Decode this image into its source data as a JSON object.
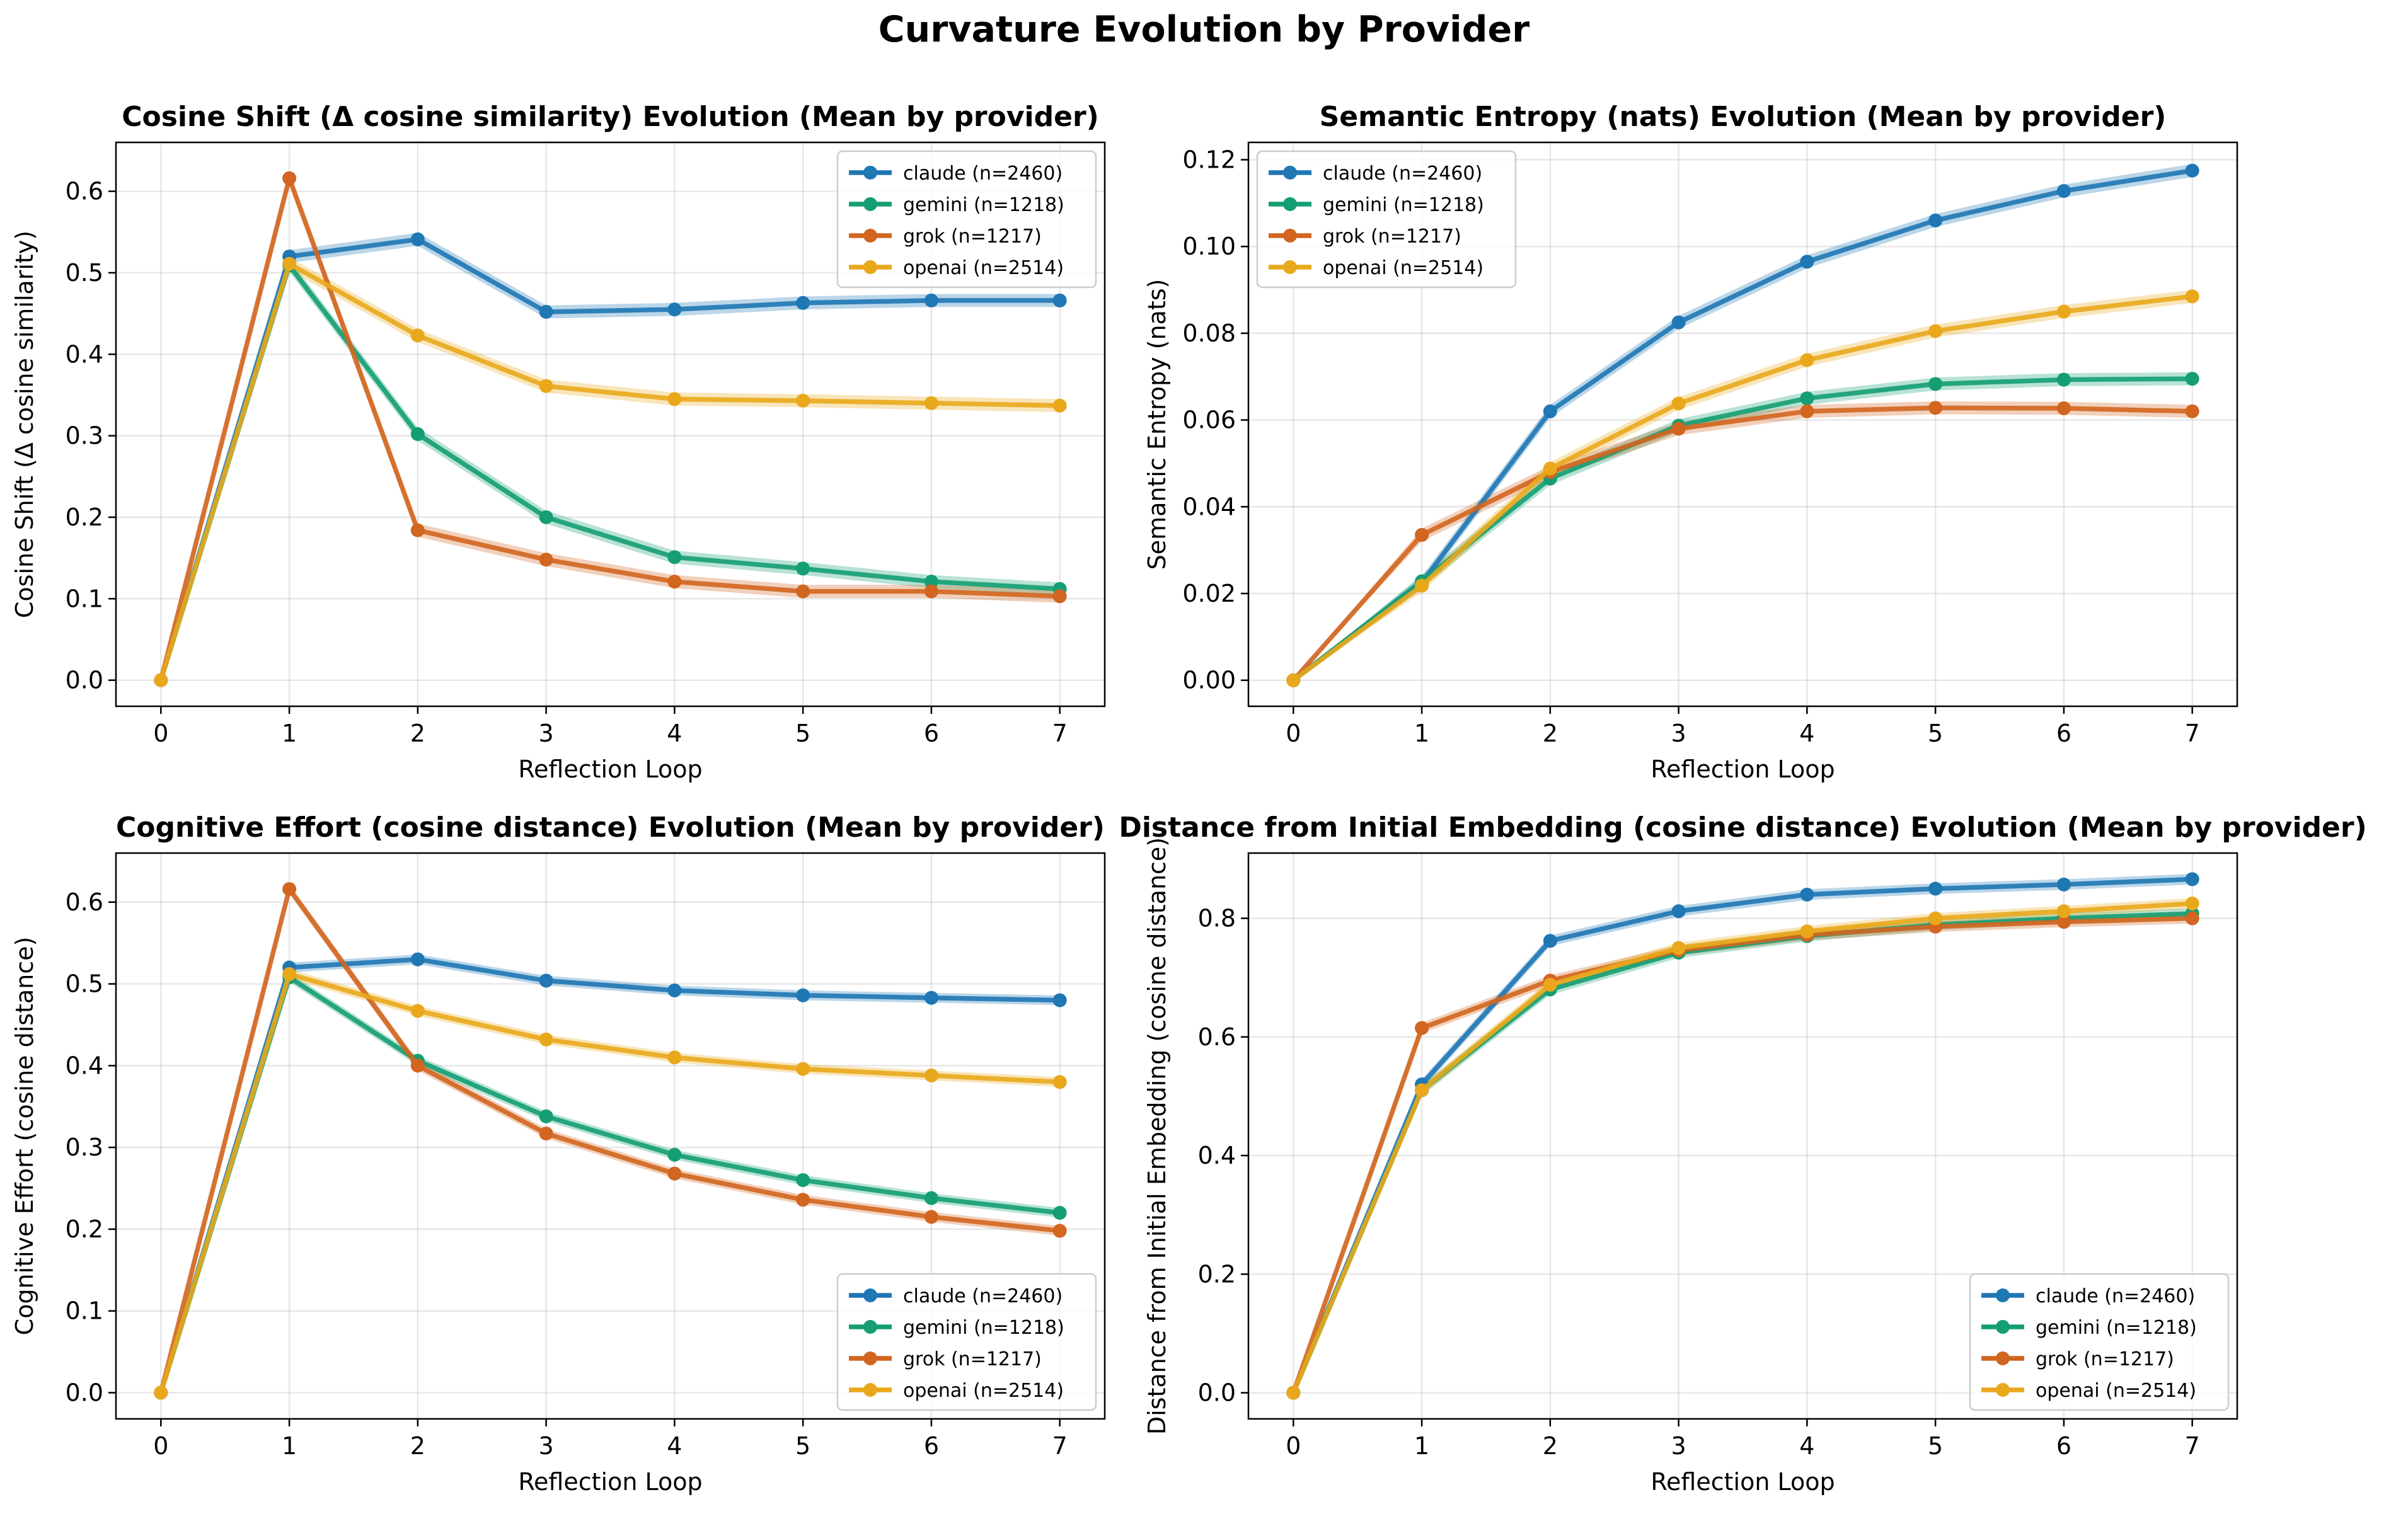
{
  "figure_title": "Curvature Evolution by Provider",
  "colors": {
    "claude": "#1f77b4",
    "gemini": "#159e73",
    "grok": "#d2651f",
    "openai": "#e9a81c"
  },
  "chart_data": [
    {
      "type": "line",
      "title": "Cosine Shift (Δ cosine similarity) Evolution (Mean by provider)",
      "xlabel": "Reflection Loop",
      "ylabel": "Cosine Shift (Δ cosine similarity)",
      "x": [
        0,
        1,
        2,
        3,
        4,
        5,
        6,
        7
      ],
      "xlim": [
        -0.35,
        7.35
      ],
      "ylim": [
        -0.032,
        0.66
      ],
      "yticks": [
        0.0,
        0.1,
        0.2,
        0.3,
        0.4,
        0.5,
        0.6
      ],
      "ytick_labels": [
        "0.0",
        "0.1",
        "0.2",
        "0.3",
        "0.4",
        "0.5",
        "0.6"
      ],
      "grid": true,
      "legend_position": "top-right",
      "series": [
        {
          "name": "claude (n=2460)",
          "values": [
            0.0,
            0.52,
            0.541,
            0.452,
            0.455,
            0.463,
            0.466,
            0.466
          ]
        },
        {
          "name": "gemini (n=1218)",
          "values": [
            0.0,
            0.509,
            0.302,
            0.2,
            0.151,
            0.137,
            0.121,
            0.112
          ]
        },
        {
          "name": "grok (n=1217)",
          "values": [
            0.0,
            0.616,
            0.184,
            0.148,
            0.121,
            0.109,
            0.109,
            0.103
          ]
        },
        {
          "name": "openai (n=2514)",
          "values": [
            0.0,
            0.511,
            0.423,
            0.361,
            0.345,
            0.343,
            0.34,
            0.337
          ]
        }
      ]
    },
    {
      "type": "line",
      "title": "Semantic Entropy (nats) Evolution (Mean by provider)",
      "xlabel": "Reflection Loop",
      "ylabel": "Semantic Entropy (nats)",
      "x": [
        0,
        1,
        2,
        3,
        4,
        5,
        6,
        7
      ],
      "xlim": [
        -0.35,
        7.35
      ],
      "ylim": [
        -0.006,
        0.124
      ],
      "yticks": [
        0.0,
        0.02,
        0.04,
        0.06,
        0.08,
        0.1,
        0.12
      ],
      "ytick_labels": [
        "0.00",
        "0.02",
        "0.04",
        "0.06",
        "0.08",
        "0.10",
        "0.12"
      ],
      "grid": true,
      "legend_position": "top-left",
      "series": [
        {
          "name": "claude (n=2460)",
          "values": [
            0.0,
            0.0225,
            0.062,
            0.0825,
            0.0965,
            0.106,
            0.1128,
            0.1175
          ]
        },
        {
          "name": "gemini (n=1218)",
          "values": [
            0.0,
            0.0228,
            0.0465,
            0.0587,
            0.065,
            0.0683,
            0.0693,
            0.0695
          ]
        },
        {
          "name": "grok (n=1217)",
          "values": [
            0.0,
            0.0335,
            0.048,
            0.058,
            0.062,
            0.0628,
            0.0627,
            0.062
          ]
        },
        {
          "name": "openai (n=2514)",
          "values": [
            0.0,
            0.0218,
            0.0488,
            0.0638,
            0.0738,
            0.0805,
            0.085,
            0.0885
          ]
        }
      ]
    },
    {
      "type": "line",
      "title": "Cognitive Effort (cosine distance) Evolution (Mean by provider)",
      "xlabel": "Reflection Loop",
      "ylabel": "Cognitive Effort (cosine distance)",
      "x": [
        0,
        1,
        2,
        3,
        4,
        5,
        6,
        7
      ],
      "xlim": [
        -0.35,
        7.35
      ],
      "ylim": [
        -0.032,
        0.66
      ],
      "yticks": [
        0.0,
        0.1,
        0.2,
        0.3,
        0.4,
        0.5,
        0.6
      ],
      "ytick_labels": [
        "0.0",
        "0.1",
        "0.2",
        "0.3",
        "0.4",
        "0.5",
        "0.6"
      ],
      "grid": true,
      "legend_position": "bottom-right",
      "series": [
        {
          "name": "claude (n=2460)",
          "values": [
            0.0,
            0.52,
            0.53,
            0.504,
            0.492,
            0.486,
            0.483,
            0.48
          ]
        },
        {
          "name": "gemini (n=1218)",
          "values": [
            0.0,
            0.508,
            0.406,
            0.338,
            0.291,
            0.26,
            0.238,
            0.22
          ]
        },
        {
          "name": "grok (n=1217)",
          "values": [
            0.0,
            0.616,
            0.4,
            0.317,
            0.268,
            0.236,
            0.215,
            0.198
          ]
        },
        {
          "name": "openai (n=2514)",
          "values": [
            0.0,
            0.512,
            0.467,
            0.432,
            0.41,
            0.396,
            0.388,
            0.38
          ]
        }
      ]
    },
    {
      "type": "line",
      "title": "Distance from Initial Embedding (cosine distance) Evolution (Mean by provider)",
      "xlabel": "Reflection Loop",
      "ylabel": "Distance from Initial Embedding (cosine distance)",
      "x": [
        0,
        1,
        2,
        3,
        4,
        5,
        6,
        7
      ],
      "xlim": [
        -0.35,
        7.35
      ],
      "ylim": [
        -0.044,
        0.91
      ],
      "yticks": [
        0.0,
        0.2,
        0.4,
        0.6,
        0.8
      ],
      "ytick_labels": [
        "0.0",
        "0.2",
        "0.4",
        "0.6",
        "0.8"
      ],
      "grid": true,
      "legend_position": "bottom-right",
      "series": [
        {
          "name": "claude (n=2460)",
          "values": [
            0.0,
            0.52,
            0.762,
            0.812,
            0.84,
            0.85,
            0.857,
            0.866
          ]
        },
        {
          "name": "gemini (n=1218)",
          "values": [
            0.0,
            0.51,
            0.68,
            0.742,
            0.77,
            0.789,
            0.8,
            0.808
          ]
        },
        {
          "name": "grok (n=1217)",
          "values": [
            0.0,
            0.615,
            0.695,
            0.746,
            0.772,
            0.786,
            0.794,
            0.8
          ]
        },
        {
          "name": "openai (n=2514)",
          "values": [
            0.0,
            0.51,
            0.688,
            0.75,
            0.778,
            0.8,
            0.812,
            0.825
          ]
        }
      ]
    }
  ]
}
